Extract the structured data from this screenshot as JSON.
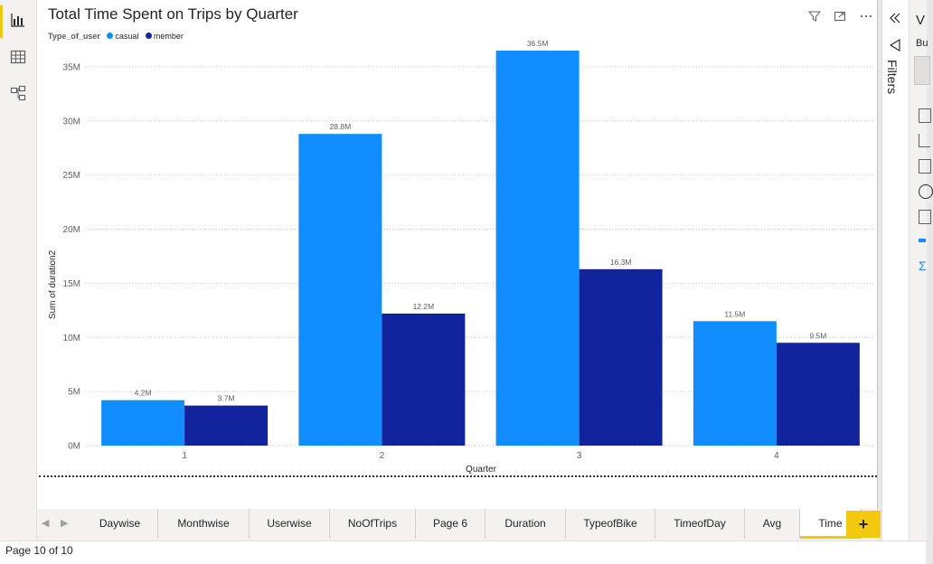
{
  "report": {
    "visual_title": "Total Time Spent on Trips by Quarter",
    "status_page": "Page 10 of 10",
    "filters_label": "Filters",
    "visualizations_initial": "V",
    "pane_build_initial": "Bu"
  },
  "legend": {
    "title": "Type_of_user",
    "items": [
      {
        "label": "casual",
        "color": "#118dff"
      },
      {
        "label": "member",
        "color": "#12239e"
      }
    ]
  },
  "tabs": [
    {
      "label": "Daywise",
      "active": false
    },
    {
      "label": "Monthwise",
      "active": false
    },
    {
      "label": "Userwise",
      "active": false
    },
    {
      "label": "NoOfTrips",
      "active": false
    },
    {
      "label": "Page 6",
      "active": false
    },
    {
      "label": "Duration",
      "active": false
    },
    {
      "label": "TypeofBike",
      "active": false
    },
    {
      "label": "TimeofDay",
      "active": false
    },
    {
      "label": "Avg",
      "active": false
    },
    {
      "label": "Time",
      "active": true
    }
  ],
  "add_tab_label": "+",
  "icons": {
    "left": [
      "bar-chart-icon",
      "table-icon",
      "model-icon"
    ],
    "visual_header": [
      "filter-icon",
      "focus-mode-icon",
      "more-options-icon"
    ],
    "collapse": "chevron-double-left-icon"
  },
  "chart_data": {
    "type": "bar",
    "title": "Total Time Spent on Trips by Quarter",
    "xlabel": "Quarter",
    "ylabel": "Sum of duration2",
    "categories": [
      "1",
      "2",
      "3",
      "4"
    ],
    "series": [
      {
        "name": "casual",
        "color": "#118dff",
        "values": [
          4.2,
          28.8,
          36.5,
          11.5
        ],
        "labels": [
          "4.2M",
          "28.8M",
          "36.5M",
          "11.5M"
        ]
      },
      {
        "name": "member",
        "color": "#12239e",
        "values": [
          3.7,
          12.2,
          16.3,
          9.5
        ],
        "labels": [
          "3.7M",
          "12.2M",
          "16.3M",
          "9.5M"
        ]
      }
    ],
    "yticks": [
      0,
      5,
      10,
      15,
      20,
      25,
      30,
      35
    ],
    "ytick_labels": [
      "0M",
      "5M",
      "10M",
      "15M",
      "20M",
      "25M",
      "30M",
      "35M"
    ],
    "ylim": [
      0,
      37
    ],
    "grid": true,
    "legend_position": "top-left"
  }
}
